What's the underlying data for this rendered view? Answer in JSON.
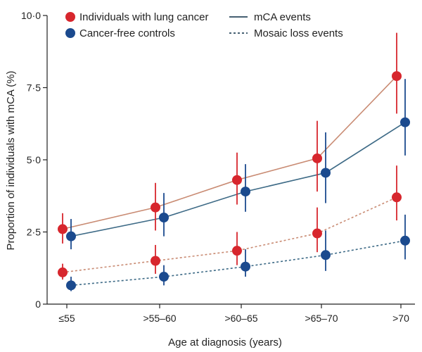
{
  "chart_data": {
    "type": "line",
    "xlabel": "Age at diagnosis (years)",
    "ylabel": "Proportion of individuals with mCA (%)",
    "categories": [
      "≤55",
      ">55–60",
      ">60–65",
      ">65–70",
      ">70"
    ],
    "ylim": [
      0,
      10
    ],
    "yticks": [
      {
        "value": 0,
        "label": "0"
      },
      {
        "value": 2.5,
        "label": "2·5"
      },
      {
        "value": 5,
        "label": "5·0"
      },
      {
        "value": 7.5,
        "label": "7·5"
      },
      {
        "value": 10,
        "label": "10·0"
      }
    ],
    "legend": {
      "groups": [
        {
          "label": "Individuals with lung cancer",
          "color": "#d7262d"
        },
        {
          "label": "Cancer-free controls",
          "color": "#1b4a8e"
        }
      ],
      "line_styles": [
        {
          "label": "mCA events",
          "style": "solid"
        },
        {
          "label": "Mosaic loss events",
          "style": "dashed"
        }
      ]
    },
    "series": [
      {
        "name": "Individuals with lung cancer – mCA events",
        "group": "lung",
        "style": "solid",
        "point_color": "#d7262d",
        "line_color": "#c98b73",
        "values": [
          2.6,
          3.35,
          4.3,
          5.05,
          7.9
        ],
        "lower": [
          2.1,
          2.55,
          3.45,
          3.9,
          6.6
        ],
        "upper": [
          3.15,
          4.2,
          5.25,
          6.35,
          9.4
        ]
      },
      {
        "name": "Cancer-free controls – mCA events",
        "group": "control",
        "style": "solid",
        "point_color": "#1b4a8e",
        "line_color": "#3d6a86",
        "values": [
          2.35,
          3.0,
          3.9,
          4.55,
          6.3
        ],
        "lower": [
          1.9,
          2.35,
          3.2,
          3.5,
          5.15
        ],
        "upper": [
          2.95,
          3.85,
          4.85,
          5.95,
          7.8
        ]
      },
      {
        "name": "Individuals with lung cancer – Mosaic loss events",
        "group": "lung",
        "style": "dashed",
        "point_color": "#d7262d",
        "line_color": "#c98b73",
        "values": [
          1.1,
          1.5,
          1.85,
          2.45,
          3.7
        ],
        "lower": [
          0.85,
          1.05,
          1.35,
          1.8,
          2.9
        ],
        "upper": [
          1.4,
          2.05,
          2.5,
          3.35,
          4.8
        ]
      },
      {
        "name": "Cancer-free controls – Mosaic loss events",
        "group": "control",
        "style": "dashed",
        "point_color": "#1b4a8e",
        "line_color": "#3d6a86",
        "values": [
          0.65,
          0.95,
          1.3,
          1.7,
          2.2
        ],
        "lower": [
          0.45,
          0.65,
          0.95,
          1.15,
          1.55
        ],
        "upper": [
          0.95,
          1.35,
          1.9,
          2.55,
          3.1
        ]
      }
    ]
  }
}
